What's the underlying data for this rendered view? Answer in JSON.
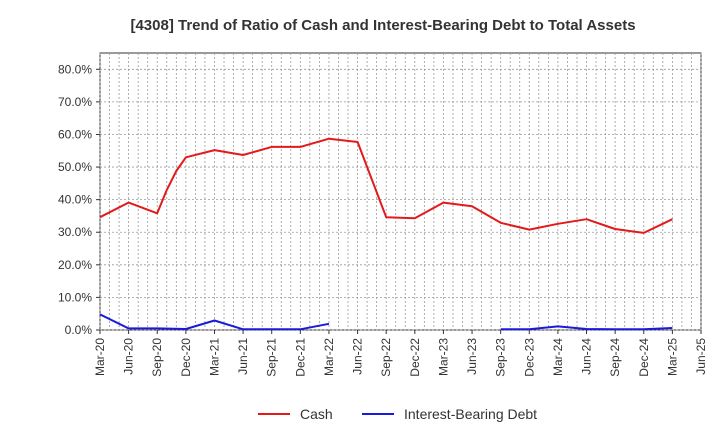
{
  "chart_data": {
    "type": "line",
    "title": "[4308]  Trend of Ratio of Cash and Interest-Bearing Debt to Total Assets",
    "xlabel": "",
    "ylabel": "",
    "ylim": [
      0,
      85
    ],
    "y_ticks": [
      0,
      10,
      20,
      30,
      40,
      50,
      60,
      70,
      80
    ],
    "y_tick_labels": [
      "0.0%",
      "10.0%",
      "20.0%",
      "30.0%",
      "40.0%",
      "50.0%",
      "60.0%",
      "70.0%",
      "80.0%"
    ],
    "x_tick_labels": [
      "Mar-20",
      "Jun-20",
      "Sep-20",
      "Dec-20",
      "Mar-21",
      "Jun-21",
      "Sep-21",
      "Dec-21",
      "Mar-22",
      "Jun-22",
      "Sep-22",
      "Dec-22",
      "Mar-23",
      "Jun-23",
      "Sep-23",
      "Dec-23",
      "Mar-24",
      "Jun-24",
      "Sep-24",
      "Dec-24",
      "Mar-25",
      "Jun-25"
    ],
    "grid": true,
    "legend_position": "bottom",
    "series": [
      {
        "name": "Cash",
        "color": "#e31a1c",
        "points": [
          [
            "Mar-20",
            34.6
          ],
          [
            "Jun-20",
            39.1
          ],
          [
            "Sep-20",
            35.8
          ],
          [
            "Oct-20",
            43.0
          ],
          [
            "Nov-20",
            48.8
          ],
          [
            "Dec-20",
            53.0
          ],
          [
            "Mar-21",
            55.2
          ],
          [
            "Jun-21",
            53.7
          ],
          [
            "Sep-21",
            56.2
          ],
          [
            "Dec-21",
            56.2
          ],
          [
            "Mar-22",
            58.7
          ],
          [
            "Jun-22",
            57.7
          ],
          [
            "Sep-22",
            34.6
          ],
          [
            "Dec-22",
            34.3
          ],
          [
            "Mar-23",
            39.1
          ],
          [
            "Jun-23",
            38.0
          ],
          [
            "Sep-23",
            32.9
          ],
          [
            "Dec-23",
            30.8
          ],
          [
            "Mar-24",
            32.6
          ],
          [
            "Jun-24",
            34.0
          ],
          [
            "Sep-24",
            31.0
          ],
          [
            "Dec-24",
            29.8
          ],
          [
            "Mar-25",
            34.0
          ]
        ]
      },
      {
        "name": "Interest-Bearing Debt",
        "color": "#1a1adb",
        "points": [
          [
            "Mar-20",
            4.8
          ],
          [
            "Jun-20",
            0.5
          ],
          [
            "Sep-20",
            0.5
          ],
          [
            "Dec-20",
            0.3
          ],
          [
            "Mar-21",
            2.9
          ],
          [
            "Jun-21",
            0.2
          ],
          [
            "Sep-21",
            0.2
          ],
          [
            "Dec-21",
            0.2
          ],
          [
            "Mar-22",
            1.9
          ],
          [
            "Jun-22",
            null
          ],
          [
            "Sep-22",
            null
          ],
          [
            "Dec-22",
            null
          ],
          [
            "Mar-23",
            null
          ],
          [
            "Jun-23",
            null
          ],
          [
            "Sep-23",
            0.2
          ],
          [
            "Dec-23",
            0.2
          ],
          [
            "Mar-24",
            1.1
          ],
          [
            "Jun-24",
            0.3
          ],
          [
            "Sep-24",
            0.2
          ],
          [
            "Dec-24",
            0.2
          ],
          [
            "Mar-25",
            0.6
          ]
        ]
      }
    ]
  }
}
